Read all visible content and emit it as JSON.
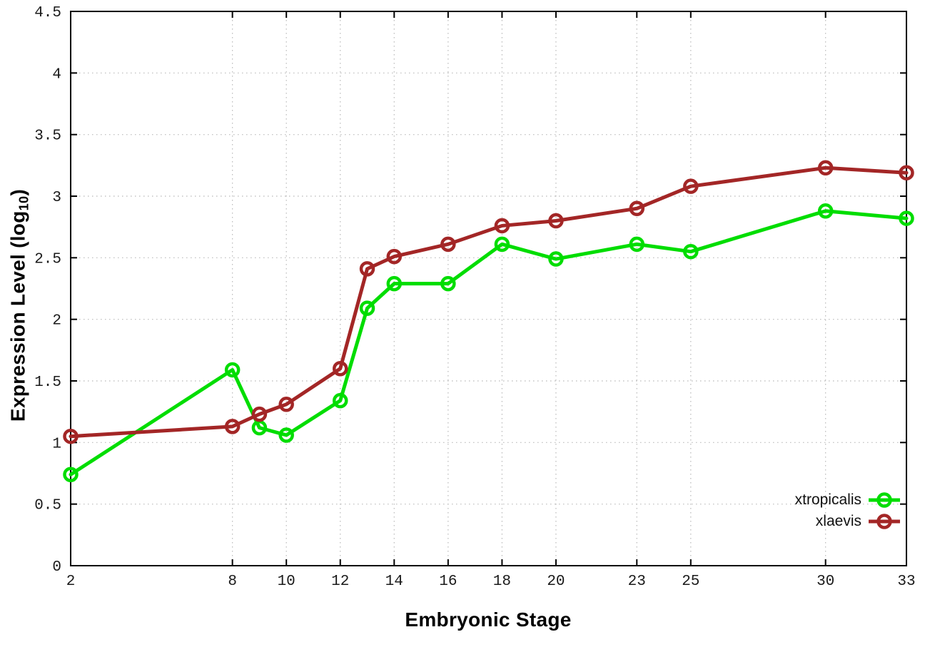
{
  "colors": {
    "xtropicalis": "#00dd00",
    "xlaevis": "#a32626",
    "grid": "#b9b9b9",
    "axis": "#000000",
    "tick_text": "#1a1a1a"
  },
  "chart_data": {
    "type": "line",
    "title": "",
    "xlabel": "Embryonic Stage",
    "ylabel": "Expression Level (log10)",
    "ylabel_rich": {
      "pre": "Expression Level (log",
      "sub": "10",
      "post": ")"
    },
    "xlim": [
      2,
      33
    ],
    "ylim": [
      0,
      4.5
    ],
    "grid": true,
    "xtick_values": [
      2,
      8,
      10,
      12,
      14,
      16,
      18,
      20,
      23,
      25,
      30,
      33
    ],
    "xtick_labels": [
      "2",
      "8",
      "10",
      "12",
      "14",
      "16",
      "18",
      "20",
      "23",
      "25",
      "30",
      "33"
    ],
    "ytick_values": [
      0,
      0.5,
      1,
      1.5,
      2,
      2.5,
      3,
      3.5,
      4,
      4.5
    ],
    "ytick_labels": [
      "0",
      "0.5",
      "1",
      "1.5",
      "2",
      "2.5",
      "3",
      "3.5",
      "4",
      "4.5"
    ],
    "legend_position": "bottom-right",
    "x": [
      2,
      8,
      9,
      10,
      12,
      13,
      14,
      16,
      18,
      20,
      23,
      25,
      30,
      33
    ],
    "series": [
      {
        "name": "xtropicalis",
        "color": "#00dd00",
        "values": [
          0.74,
          1.59,
          1.12,
          1.06,
          1.34,
          2.09,
          2.29,
          2.29,
          2.61,
          2.49,
          2.61,
          2.55,
          2.88,
          2.82
        ]
      },
      {
        "name": "xlaevis",
        "color": "#a32626",
        "values": [
          1.05,
          1.13,
          1.23,
          1.31,
          1.6,
          2.41,
          2.51,
          2.61,
          2.76,
          2.8,
          2.9,
          3.08,
          3.23,
          3.19
        ]
      }
    ]
  }
}
